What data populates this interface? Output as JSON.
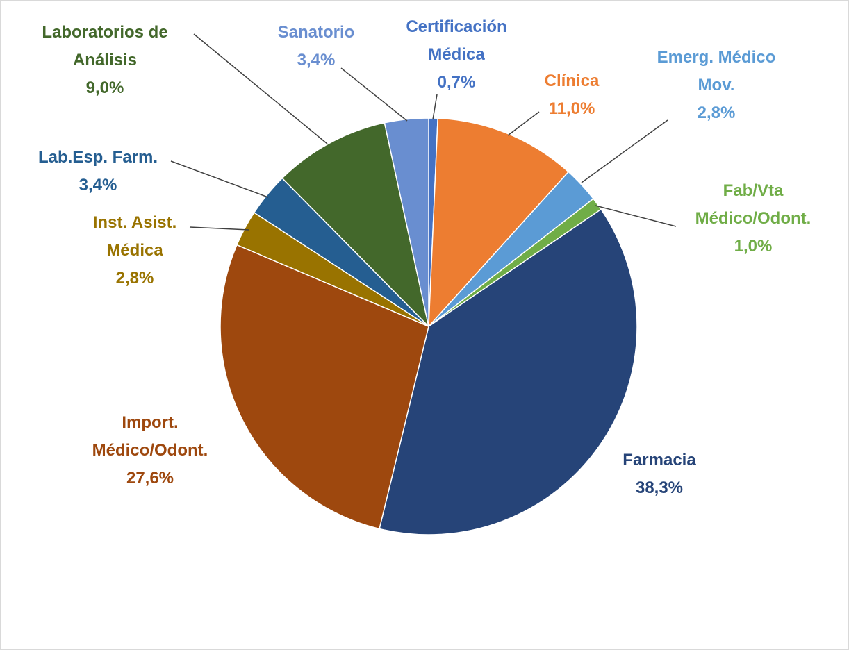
{
  "chart_data": {
    "type": "pie",
    "categories": [
      "Certificación Médica",
      "Clínica",
      "Emerg. Médico Mov.",
      "Fab/Vta Médico/Odont.",
      "Farmacia",
      "Import. Médico/Odont.",
      "Inst. Asist. Médica",
      "Lab.Esp. Farm.",
      "Laboratorios de Análisis",
      "Sanatorio"
    ],
    "values": [
      0.7,
      11.0,
      2.8,
      1.0,
      38.3,
      27.6,
      2.8,
      3.4,
      9.0,
      3.4
    ],
    "value_labels": [
      "0,7%",
      "11,0%",
      "2,8%",
      "1,0%",
      "38,3%",
      "27,6%",
      "2,8%",
      "3,4%",
      "9,0%",
      "3,4%"
    ],
    "colors": [
      "#4472c4",
      "#ed7d31",
      "#5b9bd5",
      "#70ad47",
      "#264478",
      "#9e480e",
      "#997300",
      "#255e91",
      "#43682b",
      "#698ed0"
    ]
  }
}
